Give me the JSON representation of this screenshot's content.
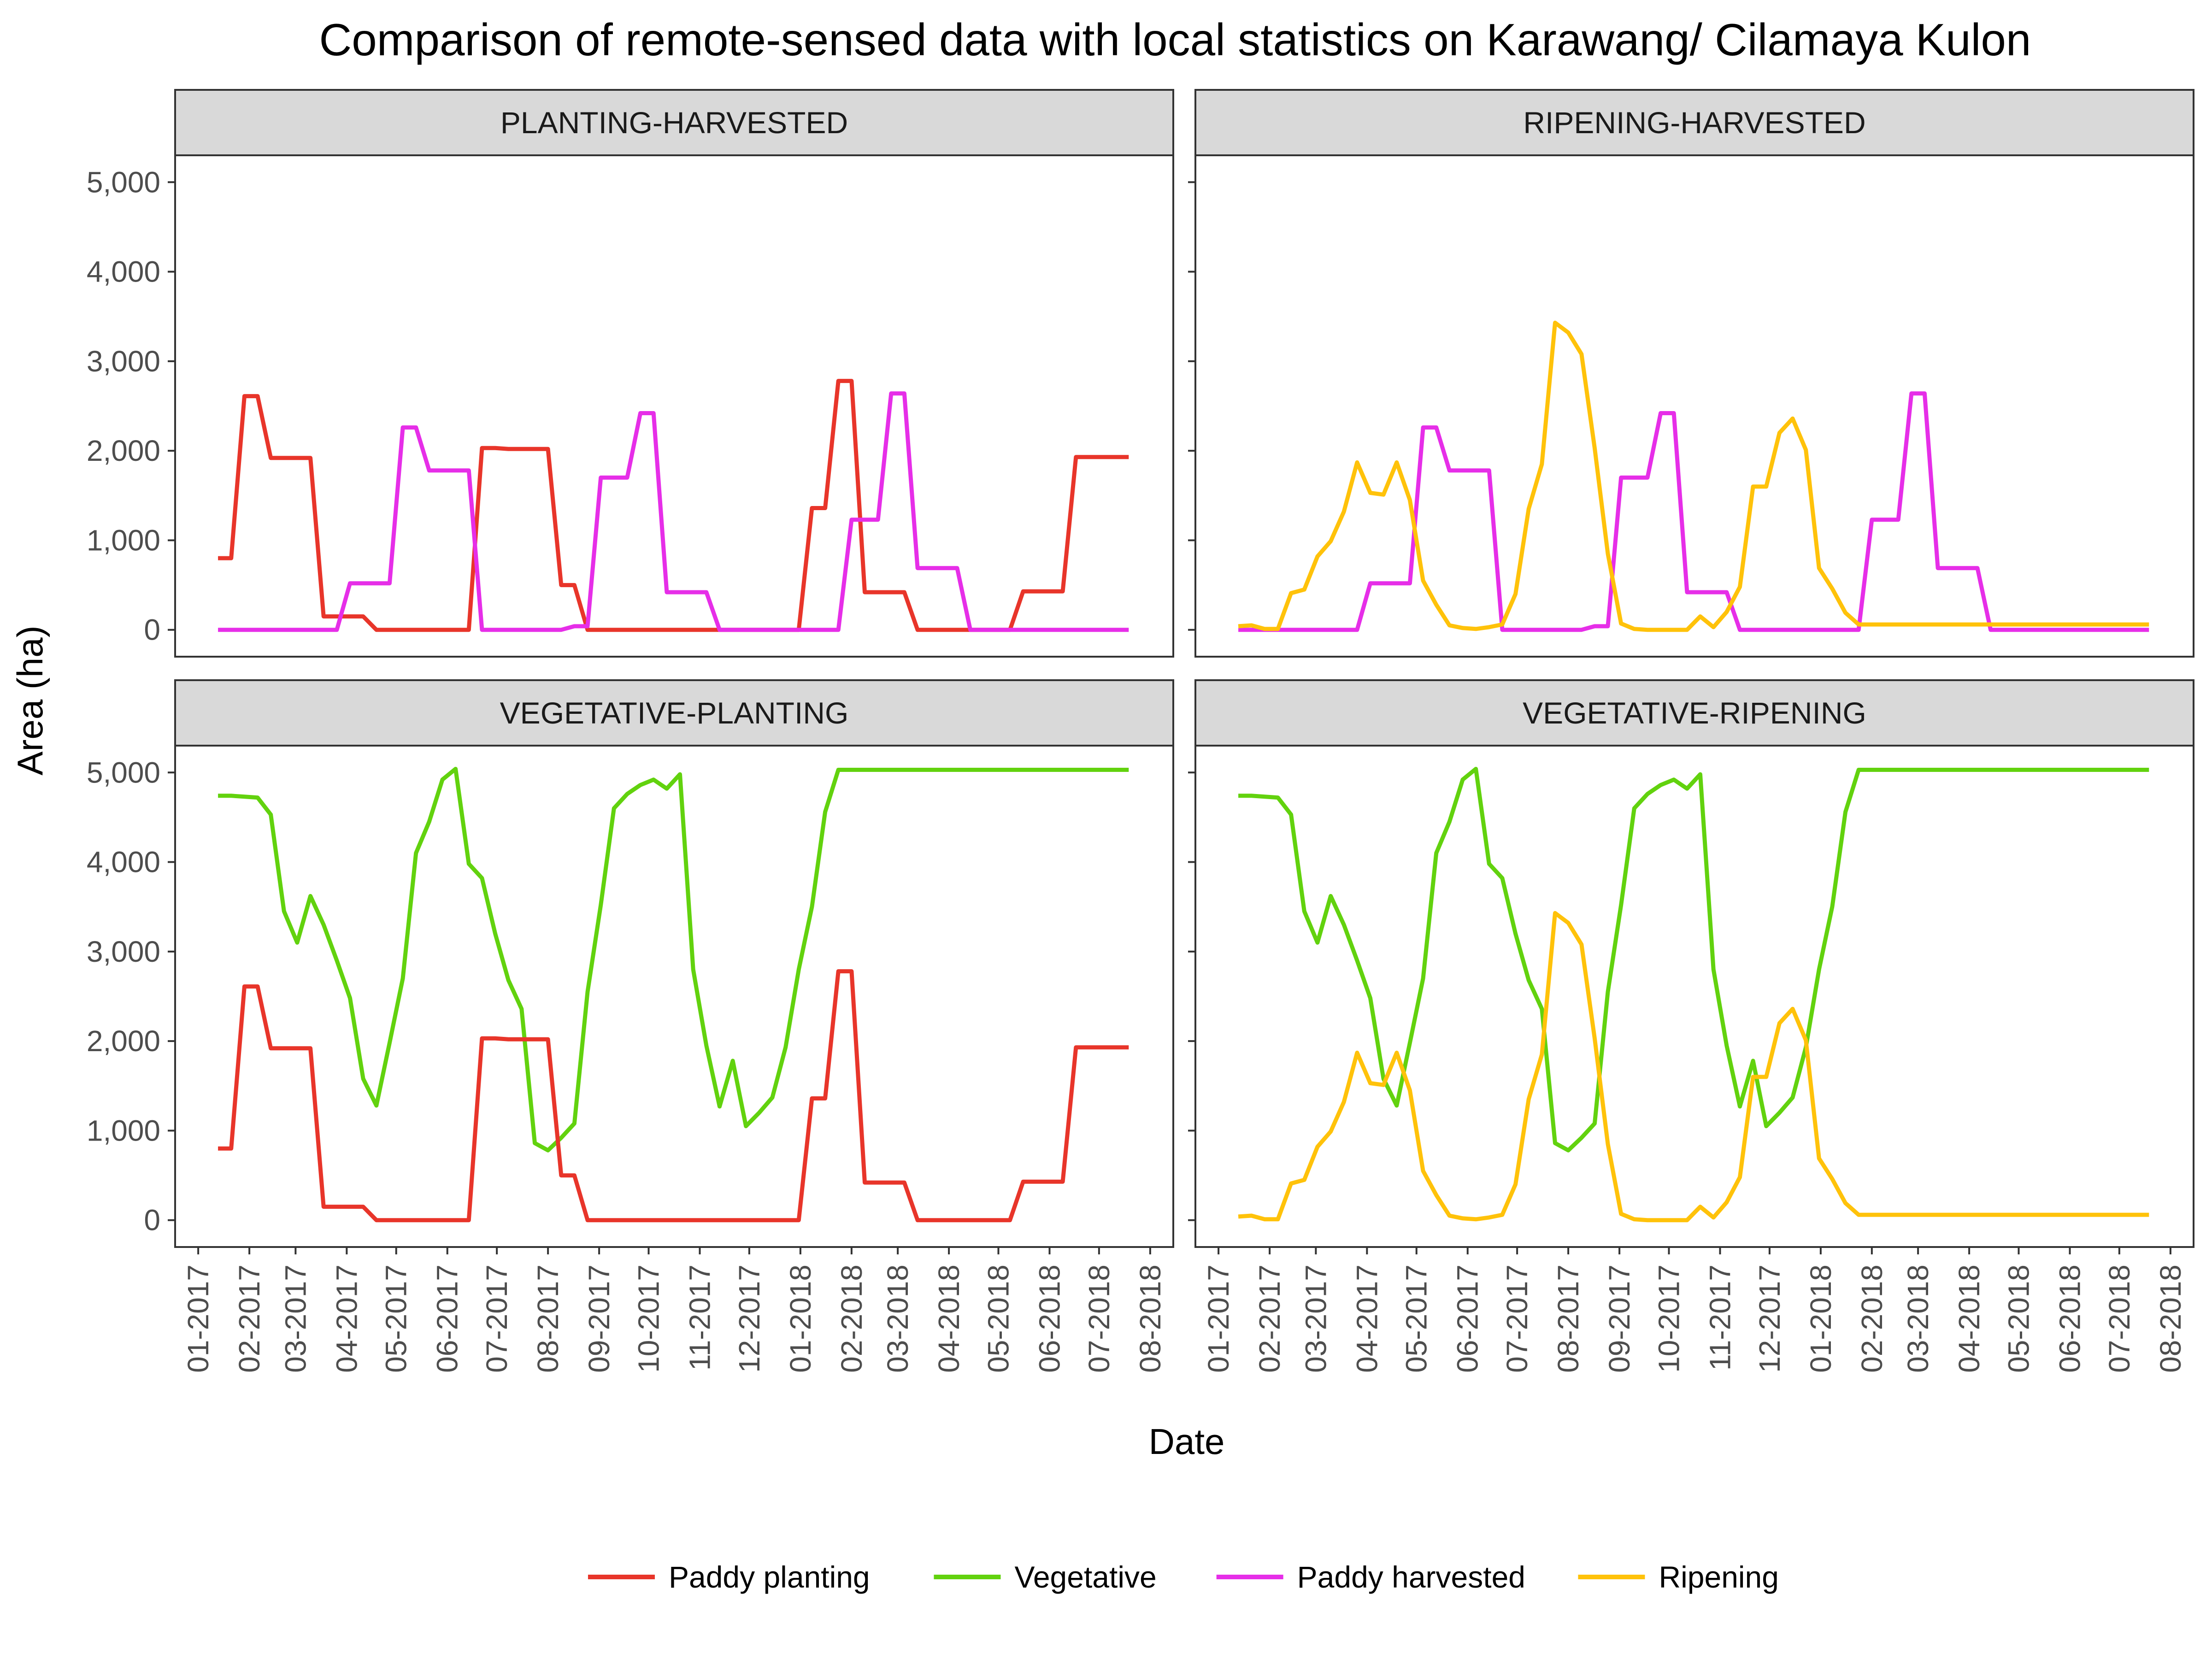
{
  "chart_data": {
    "type": "line",
    "title": "Comparison of remote-sensed data with local statistics on Karawang/ Cilamaya Kulon",
    "xlabel": "Date",
    "ylabel": "Area (ha)",
    "ylim": [
      -300,
      5300
    ],
    "yticks": [
      0,
      1000,
      2000,
      3000,
      4000,
      5000
    ],
    "ytick_labels": [
      "0",
      "1,000",
      "2,000",
      "3,000",
      "4,000",
      "5,000"
    ],
    "xticks": [
      "2017-01-01",
      "2017-02-01",
      "2017-03-01",
      "2017-04-01",
      "2017-05-01",
      "2017-06-01",
      "2017-07-01",
      "2017-08-01",
      "2017-09-01",
      "2017-10-01",
      "2017-11-01",
      "2017-12-01",
      "2018-01-01",
      "2018-02-01",
      "2018-03-01",
      "2018-04-01",
      "2018-05-01",
      "2018-06-01",
      "2018-07-01",
      "2018-08-01"
    ],
    "xtick_labels": [
      "01-2017",
      "02-2017",
      "03-2017",
      "04-2017",
      "05-2017",
      "06-2017",
      "07-2017",
      "08-2017",
      "09-2017",
      "10-2017",
      "11-2017",
      "12-2017",
      "01-2018",
      "02-2018",
      "03-2018",
      "04-2018",
      "05-2018",
      "06-2018",
      "07-2018",
      "08-2018"
    ],
    "xlim": [
      "2016-12-18",
      "2018-08-15"
    ],
    "grid": false,
    "legend_position": "bottom",
    "colors": {
      "Paddy planting": "#e8352a",
      "Vegetative": "#62d20e",
      "Paddy harvested": "#e62ee8",
      "Ripening": "#ffc20a"
    },
    "x": [
      "2017-01-13",
      "2017-01-21",
      "2017-01-29",
      "2017-02-06",
      "2017-02-14",
      "2017-02-22",
      "2017-03-02",
      "2017-03-10",
      "2017-03-18",
      "2017-03-26",
      "2017-04-03",
      "2017-04-11",
      "2017-04-19",
      "2017-04-27",
      "2017-05-05",
      "2017-05-13",
      "2017-05-21",
      "2017-05-29",
      "2017-06-06",
      "2017-06-14",
      "2017-06-22",
      "2017-06-30",
      "2017-07-08",
      "2017-07-16",
      "2017-07-24",
      "2017-08-01",
      "2017-08-09",
      "2017-08-17",
      "2017-08-25",
      "2017-09-02",
      "2017-09-10",
      "2017-09-18",
      "2017-09-26",
      "2017-10-04",
      "2017-10-12",
      "2017-10-20",
      "2017-10-28",
      "2017-11-05",
      "2017-11-13",
      "2017-11-21",
      "2017-11-29",
      "2017-12-07",
      "2017-12-15",
      "2017-12-23",
      "2017-12-31",
      "2018-01-08",
      "2018-01-16",
      "2018-01-24",
      "2018-02-01",
      "2018-02-09",
      "2018-02-17",
      "2018-02-25",
      "2018-03-05",
      "2018-03-13",
      "2018-03-21",
      "2018-03-29",
      "2018-04-06",
      "2018-04-14",
      "2018-04-22",
      "2018-04-30",
      "2018-05-08",
      "2018-05-16",
      "2018-05-24",
      "2018-06-01",
      "2018-06-09",
      "2018-06-17",
      "2018-06-25",
      "2018-07-03",
      "2018-07-11",
      "2018-07-19"
    ],
    "series": [
      {
        "name": "Paddy planting",
        "values": [
          800,
          800,
          2610,
          2610,
          1920,
          1920,
          1920,
          1920,
          150,
          150,
          150,
          150,
          0,
          0,
          0,
          0,
          0,
          0,
          0,
          0,
          2030,
          2030,
          2020,
          2020,
          2020,
          2020,
          500,
          500,
          0,
          0,
          0,
          0,
          0,
          0,
          0,
          0,
          0,
          0,
          0,
          0,
          0,
          0,
          0,
          0,
          0,
          1360,
          1360,
          2780,
          2780,
          420,
          420,
          420,
          420,
          0,
          0,
          0,
          0,
          0,
          0,
          0,
          0,
          430,
          430,
          430,
          430,
          1930,
          1930,
          1930,
          1930,
          1930
        ]
      },
      {
        "name": "Vegetative",
        "values": [
          4740,
          4740,
          4730,
          4720,
          4530,
          3450,
          3100,
          3620,
          3300,
          2900,
          2480,
          1580,
          1280,
          1980,
          2700,
          4100,
          4450,
          4920,
          5040,
          3980,
          3820,
          3200,
          2680,
          2360,
          860,
          780,
          920,
          1080,
          2550,
          3520,
          4600,
          4760,
          4860,
          4920,
          4820,
          4980,
          2800,
          1950,
          1270,
          1780,
          1050,
          1200,
          1370,
          1930,
          2800,
          3500,
          4560,
          5030,
          5030,
          5030,
          5030,
          5030,
          5030,
          5030,
          5030,
          5030,
          5030,
          5030,
          5030,
          5030,
          5030,
          5030,
          5030,
          5030,
          5030,
          5030,
          5030,
          5030,
          5030,
          5030
        ]
      },
      {
        "name": "Paddy harvested",
        "values": [
          0,
          0,
          0,
          0,
          0,
          0,
          0,
          0,
          0,
          0,
          520,
          520,
          520,
          520,
          2260,
          2260,
          1780,
          1780,
          1780,
          1780,
          0,
          0,
          0,
          0,
          0,
          0,
          0,
          40,
          40,
          1700,
          1700,
          1700,
          2420,
          2420,
          420,
          420,
          420,
          420,
          0,
          0,
          0,
          0,
          0,
          0,
          0,
          0,
          0,
          0,
          1230,
          1230,
          1230,
          2640,
          2640,
          690,
          690,
          690,
          690,
          0,
          0,
          0,
          0,
          0,
          0,
          0,
          0,
          0,
          0,
          0,
          0,
          0
        ]
      },
      {
        "name": "Ripening",
        "values": [
          40,
          50,
          10,
          10,
          410,
          450,
          820,
          990,
          1320,
          1870,
          1530,
          1510,
          1870,
          1450,
          550,
          280,
          50,
          20,
          10,
          30,
          60,
          400,
          1350,
          1850,
          3430,
          3320,
          3080,
          2030,
          850,
          70,
          10,
          0,
          0,
          0,
          0,
          150,
          30,
          200,
          480,
          1600,
          1600,
          2200,
          2360,
          2010,
          690,
          460,
          190,
          60,
          60,
          60,
          60,
          60,
          60,
          60,
          60,
          60,
          60,
          60,
          60,
          60,
          60,
          60,
          60,
          60,
          60,
          60,
          60,
          60,
          60,
          60
        ]
      }
    ],
    "panels": [
      {
        "strip": "PLANTING-HARVESTED",
        "series": [
          "Paddy planting",
          "Paddy harvested"
        ]
      },
      {
        "strip": "RIPENING-HARVESTED",
        "series": [
          "Paddy harvested",
          "Ripening"
        ]
      },
      {
        "strip": "VEGETATIVE-PLANTING",
        "series": [
          "Vegetative",
          "Paddy planting"
        ]
      },
      {
        "strip": "VEGETATIVE-RIPENING",
        "series": [
          "Vegetative",
          "Ripening"
        ]
      }
    ],
    "legend": [
      "Paddy planting",
      "Vegetative",
      "Paddy harvested",
      "Ripening"
    ]
  }
}
